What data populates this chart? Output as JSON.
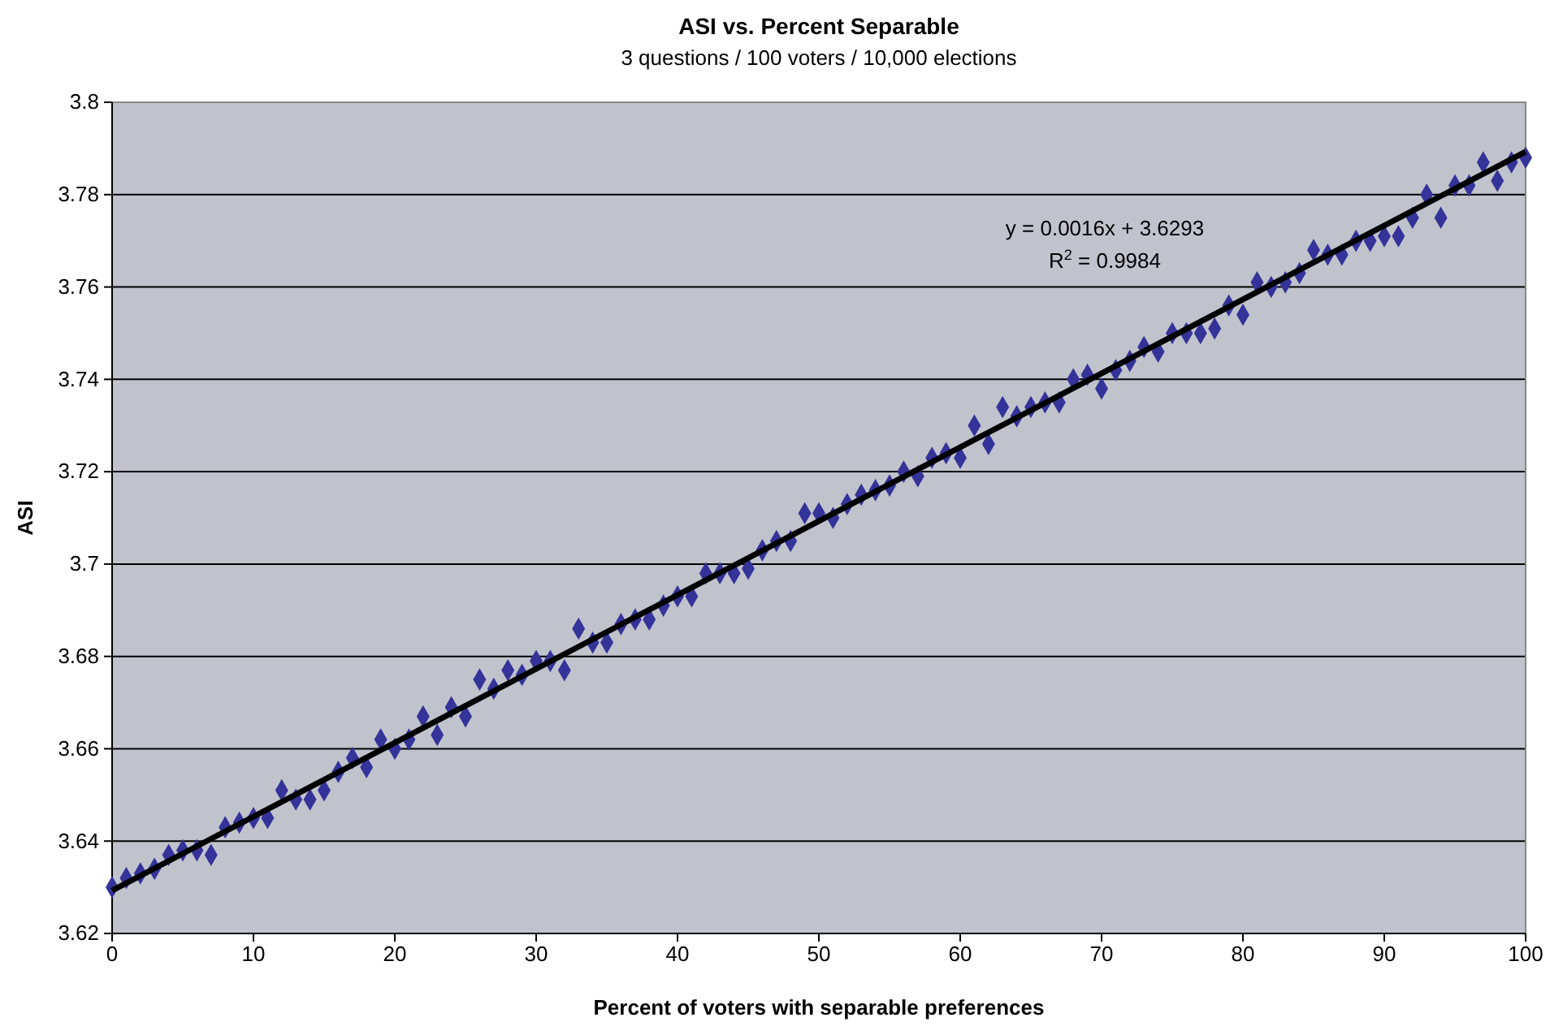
{
  "chart_data": {
    "type": "scatter",
    "title": "ASI vs. Percent Separable",
    "subtitle": "3 questions / 100 voters / 10,000 elections",
    "xlabel": "Percent of voters with separable preferences",
    "ylabel": "ASI",
    "x": [
      0,
      1,
      2,
      3,
      4,
      5,
      6,
      7,
      8,
      9,
      10,
      11,
      12,
      13,
      14,
      15,
      16,
      17,
      18,
      19,
      20,
      21,
      22,
      23,
      24,
      25,
      26,
      27,
      28,
      29,
      30,
      31,
      32,
      33,
      34,
      35,
      36,
      37,
      38,
      39,
      40,
      41,
      42,
      43,
      44,
      45,
      46,
      47,
      48,
      49,
      50,
      51,
      52,
      53,
      54,
      55,
      56,
      57,
      58,
      59,
      60,
      61,
      62,
      63,
      64,
      65,
      66,
      67,
      68,
      69,
      70,
      71,
      72,
      73,
      74,
      75,
      76,
      77,
      78,
      79,
      80,
      81,
      82,
      83,
      84,
      85,
      86,
      87,
      88,
      89,
      90,
      91,
      92,
      93,
      94,
      95,
      96,
      97,
      98,
      99,
      100
    ],
    "series": [
      {
        "type": "scatter",
        "color": "#333399",
        "marker": "diamond",
        "values": [
          3.63,
          3.632,
          3.633,
          3.634,
          3.637,
          3.638,
          3.638,
          3.637,
          3.643,
          3.644,
          3.645,
          3.645,
          3.651,
          3.649,
          3.649,
          3.651,
          3.655,
          3.658,
          3.656,
          3.662,
          3.66,
          3.662,
          3.667,
          3.663,
          3.669,
          3.667,
          3.675,
          3.673,
          3.677,
          3.676,
          3.679,
          3.679,
          3.677,
          3.686,
          3.683,
          3.683,
          3.687,
          3.688,
          3.688,
          3.691,
          3.693,
          3.693,
          3.698,
          3.698,
          3.698,
          3.699,
          3.703,
          3.705,
          3.705,
          3.711,
          3.711,
          3.71,
          3.713,
          3.715,
          3.716,
          3.717,
          3.72,
          3.719,
          3.723,
          3.724,
          3.723,
          3.73,
          3.726,
          3.734,
          3.732,
          3.734,
          3.735,
          3.735,
          3.74,
          3.741,
          3.738,
          3.742,
          3.744,
          3.747,
          3.746,
          3.75,
          3.75,
          3.75,
          3.751,
          3.756,
          3.754,
          3.761,
          3.76,
          3.761,
          3.763,
          3.768,
          3.767,
          3.767,
          3.77,
          3.77,
          3.771,
          3.771,
          3.775,
          3.78,
          3.775,
          3.782,
          3.782,
          3.787,
          3.783,
          3.787,
          3.788
        ]
      },
      {
        "type": "line",
        "color": "#000000",
        "x": [
          0,
          100
        ],
        "values": [
          3.6293,
          3.7893
        ]
      }
    ],
    "xlim": [
      0,
      100
    ],
    "xticks": [
      0,
      10,
      20,
      30,
      40,
      50,
      60,
      70,
      80,
      90,
      100
    ],
    "ylim": [
      3.62,
      3.8
    ],
    "yticks": [
      {
        "value": 3.62,
        "label": "3.62"
      },
      {
        "value": 3.64,
        "label": "3.64"
      },
      {
        "value": 3.66,
        "label": "3.66"
      },
      {
        "value": 3.68,
        "label": "3.68"
      },
      {
        "value": 3.7,
        "label": "3.7"
      },
      {
        "value": 3.72,
        "label": "3.72"
      },
      {
        "value": 3.74,
        "label": "3.74"
      },
      {
        "value": 3.76,
        "label": "3.76"
      },
      {
        "value": 3.78,
        "label": "3.78"
      },
      {
        "value": 3.8,
        "label": "3.8"
      }
    ],
    "grid": "y",
    "annotations": [
      "y = 0.0016x + 3.6293",
      "R$^{2}$ = 0.9984"
    ]
  }
}
